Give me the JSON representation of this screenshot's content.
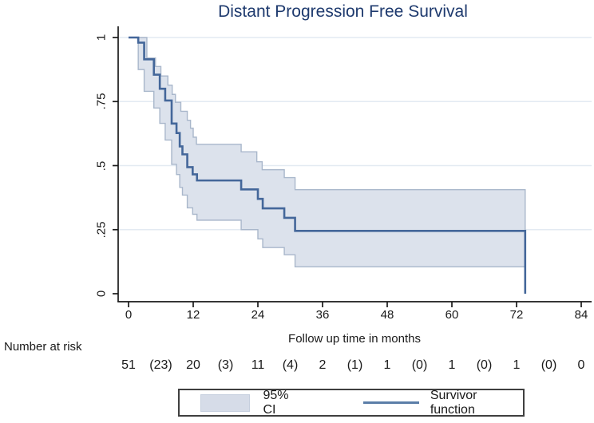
{
  "title": {
    "text": "Distant Progression Free Survival",
    "color": "#1e3a6e"
  },
  "chart_data": {
    "type": "line",
    "subtype": "kaplan-meier-step",
    "title": "Distant Progression Free Survival",
    "xlabel": "Follow up time in months",
    "ylabel": "",
    "xlim": [
      0,
      84
    ],
    "ylim": [
      0,
      1
    ],
    "x_ticks": [
      0,
      12,
      24,
      36,
      48,
      60,
      72,
      84
    ],
    "y_ticks": [
      {
        "value": 0,
        "label": "0"
      },
      {
        "value": 0.25,
        "label": ".25"
      },
      {
        "value": 0.5,
        "label": ".5"
      },
      {
        "value": 0.75,
        "label": ".75"
      },
      {
        "value": 1,
        "label": "1"
      }
    ],
    "grid": "horizontal",
    "legend_position": "bottom",
    "series": [
      {
        "name": "Survivor function",
        "role": "survivor",
        "color": "#44679a",
        "points": [
          [
            0,
            1
          ],
          [
            1.8,
            0.98
          ],
          [
            2.9,
            0.915
          ],
          [
            4.7,
            0.855
          ],
          [
            5.8,
            0.8
          ],
          [
            6.8,
            0.754
          ],
          [
            8.0,
            0.664
          ],
          [
            8.9,
            0.627
          ],
          [
            9.5,
            0.575
          ],
          [
            10.0,
            0.544
          ],
          [
            10.9,
            0.494
          ],
          [
            11.9,
            0.466
          ],
          [
            12.7,
            0.442
          ],
          [
            20.9,
            0.407
          ],
          [
            24.0,
            0.37
          ],
          [
            24.9,
            0.333
          ],
          [
            28.9,
            0.296
          ],
          [
            30.9,
            0.245
          ],
          [
            73.6,
            0
          ]
        ]
      },
      {
        "name": "95% CI upper bound",
        "role": "ci-upper",
        "color": "#a9b7cb",
        "points": [
          [
            0,
            1
          ],
          [
            3.4,
            0.92
          ],
          [
            5.0,
            0.887
          ],
          [
            6.0,
            0.85
          ],
          [
            7.3,
            0.814
          ],
          [
            8.1,
            0.778
          ],
          [
            8.7,
            0.747
          ],
          [
            9.7,
            0.712
          ],
          [
            10.9,
            0.677
          ],
          [
            11.5,
            0.646
          ],
          [
            12.0,
            0.611
          ],
          [
            12.6,
            0.583
          ],
          [
            20.9,
            0.554
          ],
          [
            23.8,
            0.515
          ],
          [
            24.8,
            0.484
          ],
          [
            28.9,
            0.453
          ],
          [
            30.9,
            0.406
          ],
          [
            73.6,
            0.406
          ]
        ]
      },
      {
        "name": "95% CI lower bound",
        "role": "ci-lower",
        "color": "#a9b7cb",
        "points": [
          [
            0,
            1
          ],
          [
            1.8,
            0.875
          ],
          [
            2.9,
            0.79
          ],
          [
            4.7,
            0.725
          ],
          [
            5.8,
            0.665
          ],
          [
            6.8,
            0.6
          ],
          [
            8.0,
            0.505
          ],
          [
            8.9,
            0.465
          ],
          [
            9.5,
            0.415
          ],
          [
            10.0,
            0.385
          ],
          [
            10.9,
            0.335
          ],
          [
            11.9,
            0.31
          ],
          [
            12.7,
            0.287
          ],
          [
            20.9,
            0.25
          ],
          [
            24.0,
            0.214
          ],
          [
            24.9,
            0.18
          ],
          [
            28.9,
            0.152
          ],
          [
            30.9,
            0.105
          ],
          [
            73.6,
            0.105
          ]
        ]
      }
    ],
    "ci_fill_color": "#dce2ec",
    "number_at_risk": {
      "label": "Number at risk",
      "entries": [
        {
          "month": 0,
          "label": "51"
        },
        {
          "month": 6,
          "label": "(23)"
        },
        {
          "month": 12,
          "label": "20"
        },
        {
          "month": 18,
          "label": "(3)"
        },
        {
          "month": 24,
          "label": "11"
        },
        {
          "month": 30,
          "label": "(4)"
        },
        {
          "month": 36,
          "label": "2"
        },
        {
          "month": 42,
          "label": "(1)"
        },
        {
          "month": 48,
          "label": "1"
        },
        {
          "month": 54,
          "label": "(0)"
        },
        {
          "month": 60,
          "label": "1"
        },
        {
          "month": 66,
          "label": "(0)"
        },
        {
          "month": 72,
          "label": "1"
        },
        {
          "month": 78,
          "label": "(0)"
        },
        {
          "month": 84,
          "label": "0"
        }
      ]
    },
    "legend": {
      "entries": [
        {
          "swatch": "box",
          "label": "95% CI"
        },
        {
          "swatch": "line",
          "label": "Survivor function"
        }
      ]
    }
  },
  "colors": {
    "axis": "#1a1a1a",
    "grid": "#e3eaf2",
    "text": "#1a1a1a",
    "legend_border": "#3f3f3f",
    "survivor_line": "#44679a",
    "ci_fill": "#dce2ec",
    "ci_edge": "#a9b7cb"
  }
}
